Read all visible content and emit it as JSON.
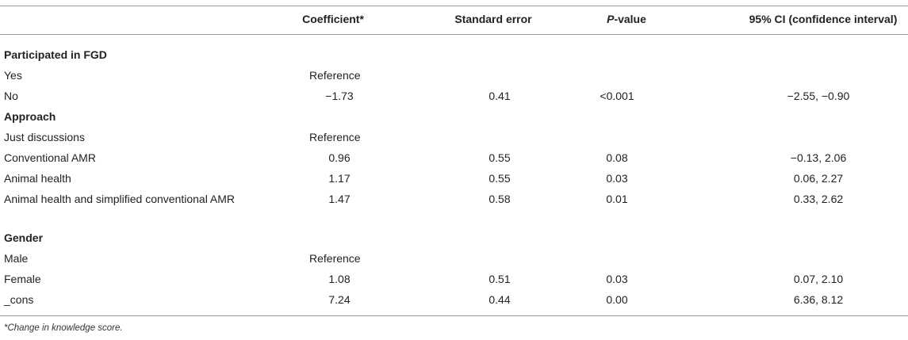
{
  "header": {
    "coefficient": "Coefficient*",
    "std_error": "Standard error",
    "p_italic": "P",
    "p_rest": "-value",
    "ci": "95% CI (confidence interval)"
  },
  "rows": [
    {
      "label": "Participated in FGD",
      "section": true
    },
    {
      "label": "Yes",
      "coef": "Reference"
    },
    {
      "label": "No",
      "coef": "−1.73",
      "se": "0.41",
      "p": "<0.001",
      "ci": "−2.55, −0.90"
    },
    {
      "label": "Approach",
      "section": true
    },
    {
      "label": "Just discussions",
      "coef": "Reference"
    },
    {
      "label": "Conventional AMR",
      "coef": "0.96",
      "se": "0.55",
      "p": "0.08",
      "ci": "−0.13, 2.06"
    },
    {
      "label": "Animal health",
      "coef": "1.17",
      "se": "0.55",
      "p": "0.03",
      "ci": "0.06, 2.27"
    },
    {
      "label": "Animal health and simplified conventional AMR",
      "coef": "1.47",
      "se": "0.58",
      "p": "0.01",
      "ci": "0.33, 2.62"
    },
    {
      "label": "Gender",
      "section": true
    },
    {
      "label": "Male",
      "coef": "Reference"
    },
    {
      "label": "Female",
      "coef": "1.08",
      "se": "0.51",
      "p": "0.03",
      "ci": "0.07, 2.10"
    },
    {
      "label": "_cons",
      "coef": "7.24",
      "se": "0.44",
      "p": "0.00",
      "ci": "6.36, 8.12"
    }
  ],
  "footnote": "*Change in knowledge score."
}
